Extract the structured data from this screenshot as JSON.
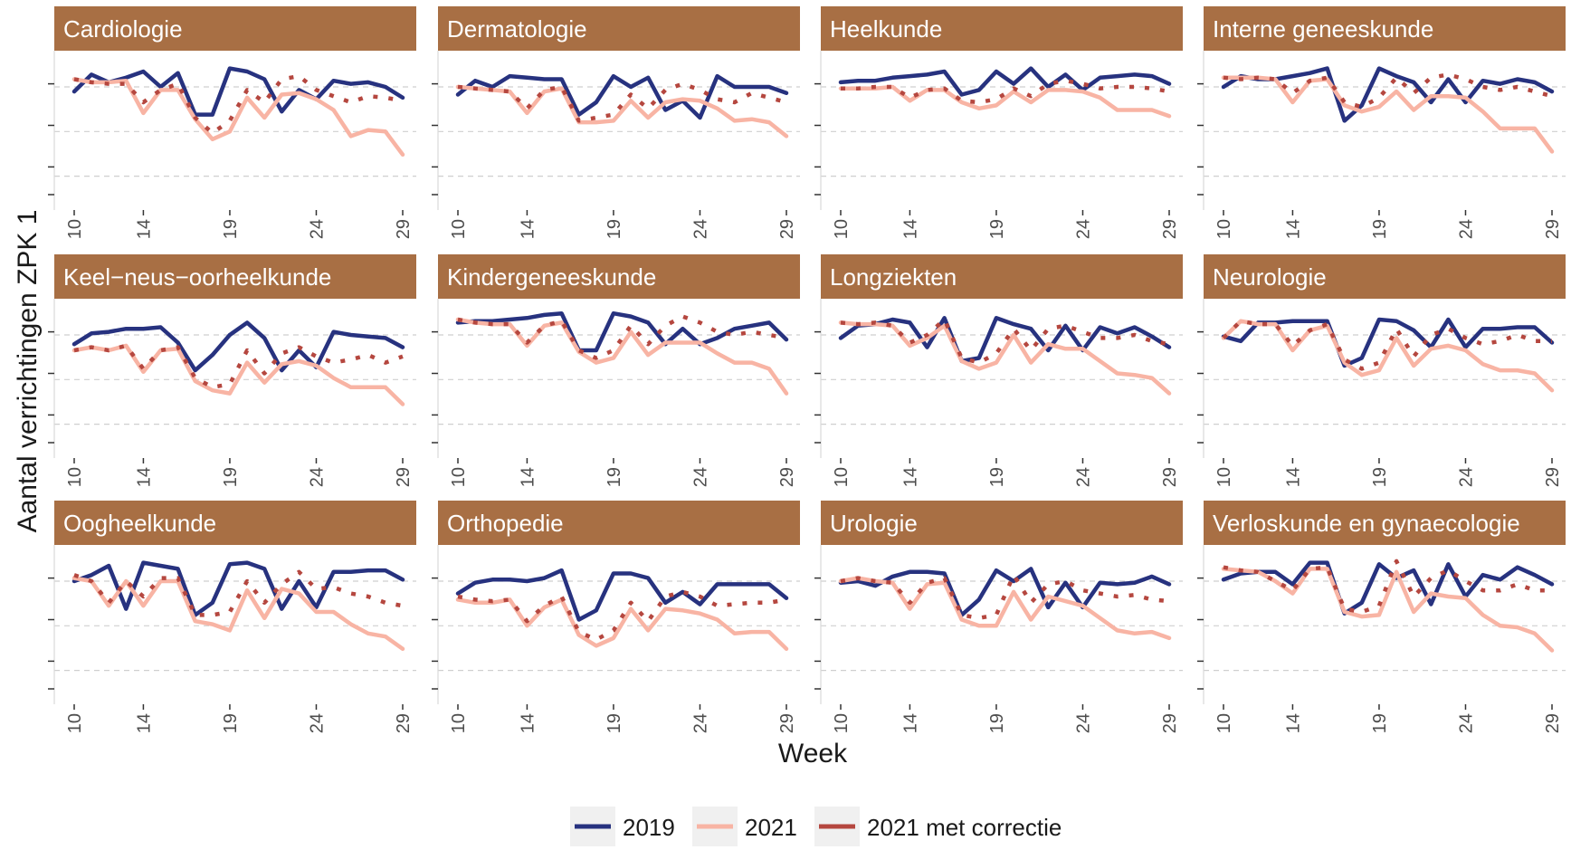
{
  "chart_data": {
    "type": "line",
    "xlabel": "Week",
    "ylabel": "Aantal verrichtingen ZPK 1",
    "x": [
      10,
      11,
      12,
      13,
      14,
      15,
      16,
      17,
      18,
      19,
      20,
      21,
      22,
      23,
      24,
      25,
      26,
      27,
      28,
      29
    ],
    "x_ticks": [
      10,
      14,
      19,
      24,
      29
    ],
    "y_tick_labels_shown": false,
    "y_unit": "index (relative, no printed tick labels)",
    "ylim": [
      0,
      1
    ],
    "grid": "dashed horizontal gridlines",
    "legend_position": "bottom",
    "strip_color": "#A86F44",
    "series_styles": [
      {
        "name": "2019",
        "color": "#27327F",
        "dash": "solid"
      },
      {
        "name": "2021",
        "color": "#F8B4A4",
        "dash": "solid"
      },
      {
        "name": "2021 met correctie",
        "color": "#B5473F",
        "dash": "dotted"
      }
    ],
    "panels": [
      {
        "title": "Cardiologie",
        "series": [
          {
            "name": "2019",
            "values": [
              0.77,
              0.88,
              0.83,
              0.86,
              0.9,
              0.8,
              0.89,
              0.62,
              0.62,
              0.92,
              0.9,
              0.85,
              0.64,
              0.78,
              0.72,
              0.84,
              0.82,
              0.83,
              0.8,
              0.73
            ]
          },
          {
            "name": "2021",
            "values": [
              0.85,
              0.83,
              0.83,
              0.84,
              0.63,
              0.78,
              0.78,
              0.59,
              0.46,
              0.51,
              0.73,
              0.6,
              0.75,
              0.76,
              0.72,
              0.65,
              0.48,
              0.52,
              0.51,
              0.36
            ]
          },
          {
            "name": "2021 met correctie",
            "values": [
              0.85,
              0.83,
              0.82,
              0.82,
              0.7,
              0.78,
              0.82,
              0.6,
              0.5,
              0.58,
              0.78,
              0.7,
              0.85,
              0.87,
              0.78,
              0.74,
              0.7,
              0.74,
              0.73,
              0.71
            ]
          }
        ]
      },
      {
        "title": "Dermatologie",
        "series": [
          {
            "name": "2019",
            "values": [
              0.75,
              0.84,
              0.8,
              0.87,
              0.86,
              0.85,
              0.85,
              0.62,
              0.7,
              0.87,
              0.8,
              0.86,
              0.65,
              0.71,
              0.6,
              0.87,
              0.8,
              0.8,
              0.8,
              0.76
            ]
          },
          {
            "name": "2021",
            "values": [
              0.8,
              0.79,
              0.78,
              0.77,
              0.63,
              0.77,
              0.79,
              0.57,
              0.57,
              0.58,
              0.71,
              0.6,
              0.7,
              0.72,
              0.71,
              0.66,
              0.58,
              0.59,
              0.57,
              0.48
            ]
          },
          {
            "name": "2021 met correctie",
            "values": [
              0.8,
              0.79,
              0.78,
              0.77,
              0.66,
              0.78,
              0.8,
              0.58,
              0.6,
              0.62,
              0.75,
              0.66,
              0.78,
              0.82,
              0.78,
              0.72,
              0.7,
              0.76,
              0.73,
              0.7
            ]
          }
        ]
      },
      {
        "title": "Heelkunde",
        "series": [
          {
            "name": "2019",
            "values": [
              0.83,
              0.84,
              0.84,
              0.86,
              0.87,
              0.88,
              0.9,
              0.75,
              0.78,
              0.9,
              0.82,
              0.92,
              0.8,
              0.88,
              0.78,
              0.86,
              0.87,
              0.88,
              0.87,
              0.82
            ]
          },
          {
            "name": "2021",
            "values": [
              0.79,
              0.79,
              0.79,
              0.8,
              0.71,
              0.78,
              0.78,
              0.7,
              0.66,
              0.68,
              0.77,
              0.7,
              0.78,
              0.78,
              0.77,
              0.73,
              0.65,
              0.65,
              0.65,
              0.61
            ]
          },
          {
            "name": "2021 met correctie",
            "values": [
              0.79,
              0.79,
              0.8,
              0.8,
              0.73,
              0.78,
              0.79,
              0.71,
              0.7,
              0.72,
              0.79,
              0.74,
              0.82,
              0.84,
              0.82,
              0.79,
              0.8,
              0.8,
              0.79,
              0.77
            ]
          }
        ]
      },
      {
        "title": "Interne geneeskunde",
        "series": [
          {
            "name": "2019",
            "values": [
              0.8,
              0.87,
              0.85,
              0.85,
              0.87,
              0.89,
              0.92,
              0.58,
              0.68,
              0.92,
              0.87,
              0.83,
              0.7,
              0.85,
              0.7,
              0.84,
              0.82,
              0.85,
              0.83,
              0.77
            ]
          },
          {
            "name": "2021",
            "values": [
              0.86,
              0.86,
              0.86,
              0.85,
              0.7,
              0.84,
              0.85,
              0.68,
              0.64,
              0.67,
              0.77,
              0.65,
              0.74,
              0.74,
              0.73,
              0.64,
              0.53,
              0.53,
              0.53,
              0.38
            ]
          },
          {
            "name": "2021 met correctie",
            "values": [
              0.86,
              0.85,
              0.86,
              0.85,
              0.76,
              0.84,
              0.86,
              0.7,
              0.67,
              0.73,
              0.86,
              0.76,
              0.86,
              0.88,
              0.85,
              0.8,
              0.78,
              0.8,
              0.77,
              0.74
            ]
          }
        ]
      },
      {
        "title": "Keel−neus−oorheelkunde",
        "series": [
          {
            "name": "2019",
            "values": [
              0.74,
              0.81,
              0.82,
              0.84,
              0.84,
              0.85,
              0.75,
              0.57,
              0.67,
              0.8,
              0.88,
              0.78,
              0.57,
              0.7,
              0.59,
              0.82,
              0.8,
              0.79,
              0.78,
              0.72
            ]
          },
          {
            "name": "2021",
            "values": [
              0.7,
              0.72,
              0.7,
              0.73,
              0.56,
              0.7,
              0.71,
              0.5,
              0.44,
              0.42,
              0.62,
              0.49,
              0.61,
              0.63,
              0.6,
              0.52,
              0.46,
              0.46,
              0.46,
              0.35
            ]
          },
          {
            "name": "2021 met correctie",
            "values": [
              0.7,
              0.72,
              0.7,
              0.73,
              0.58,
              0.7,
              0.72,
              0.52,
              0.46,
              0.48,
              0.7,
              0.55,
              0.68,
              0.72,
              0.66,
              0.62,
              0.64,
              0.67,
              0.62,
              0.66
            ]
          }
        ]
      },
      {
        "title": "Kindergeneeskunde",
        "series": [
          {
            "name": "2019",
            "values": [
              0.88,
              0.89,
              0.89,
              0.9,
              0.91,
              0.93,
              0.94,
              0.7,
              0.7,
              0.94,
              0.92,
              0.88,
              0.74,
              0.84,
              0.74,
              0.78,
              0.84,
              0.86,
              0.88,
              0.77
            ]
          },
          {
            "name": "2021",
            "values": [
              0.9,
              0.88,
              0.87,
              0.87,
              0.73,
              0.86,
              0.88,
              0.69,
              0.62,
              0.65,
              0.82,
              0.67,
              0.75,
              0.75,
              0.75,
              0.68,
              0.62,
              0.62,
              0.58,
              0.42
            ]
          },
          {
            "name": "2021 met correctie",
            "values": [
              0.9,
              0.88,
              0.87,
              0.87,
              0.75,
              0.86,
              0.89,
              0.7,
              0.65,
              0.7,
              0.86,
              0.74,
              0.86,
              0.92,
              0.88,
              0.82,
              0.8,
              0.82,
              0.8,
              0.78
            ]
          }
        ]
      },
      {
        "title": "Longziekten",
        "series": [
          {
            "name": "2019",
            "values": [
              0.78,
              0.86,
              0.87,
              0.9,
              0.88,
              0.72,
              0.91,
              0.63,
              0.65,
              0.91,
              0.87,
              0.84,
              0.7,
              0.86,
              0.7,
              0.85,
              0.81,
              0.85,
              0.79,
              0.72
            ]
          },
          {
            "name": "2021",
            "values": [
              0.88,
              0.87,
              0.87,
              0.86,
              0.73,
              0.78,
              0.86,
              0.63,
              0.58,
              0.62,
              0.8,
              0.62,
              0.74,
              0.71,
              0.71,
              0.63,
              0.55,
              0.54,
              0.52,
              0.42
            ]
          },
          {
            "name": "2021 met correctie",
            "values": [
              0.88,
              0.87,
              0.88,
              0.86,
              0.75,
              0.8,
              0.9,
              0.65,
              0.62,
              0.68,
              0.84,
              0.7,
              0.84,
              0.86,
              0.82,
              0.78,
              0.78,
              0.8,
              0.76,
              0.74
            ]
          }
        ]
      },
      {
        "title": "Neurologie",
        "series": [
          {
            "name": "2019",
            "values": [
              0.79,
              0.76,
              0.88,
              0.88,
              0.89,
              0.89,
              0.89,
              0.6,
              0.65,
              0.9,
              0.89,
              0.83,
              0.72,
              0.9,
              0.72,
              0.84,
              0.84,
              0.85,
              0.85,
              0.75
            ]
          },
          {
            "name": "2021",
            "values": [
              0.78,
              0.89,
              0.87,
              0.87,
              0.7,
              0.83,
              0.86,
              0.62,
              0.54,
              0.57,
              0.78,
              0.6,
              0.71,
              0.73,
              0.7,
              0.61,
              0.57,
              0.57,
              0.55,
              0.44
            ]
          },
          {
            "name": "2021 met correctie",
            "values": [
              0.78,
              0.89,
              0.87,
              0.87,
              0.73,
              0.83,
              0.87,
              0.64,
              0.58,
              0.62,
              0.84,
              0.66,
              0.8,
              0.84,
              0.78,
              0.74,
              0.76,
              0.8,
              0.76,
              0.76
            ]
          }
        ]
      },
      {
        "title": "Oogheelkunde",
        "series": [
          {
            "name": "2019",
            "values": [
              0.8,
              0.84,
              0.9,
              0.62,
              0.92,
              0.9,
              0.88,
              0.58,
              0.66,
              0.91,
              0.92,
              0.88,
              0.62,
              0.8,
              0.63,
              0.86,
              0.86,
              0.87,
              0.87,
              0.81
            ]
          },
          {
            "name": "2021",
            "values": [
              0.82,
              0.8,
              0.64,
              0.8,
              0.64,
              0.8,
              0.8,
              0.54,
              0.52,
              0.48,
              0.74,
              0.56,
              0.75,
              0.72,
              0.6,
              0.6,
              0.52,
              0.46,
              0.44,
              0.36
            ]
          },
          {
            "name": "2021 met correctie",
            "values": [
              0.84,
              0.8,
              0.66,
              0.8,
              0.7,
              0.82,
              0.82,
              0.58,
              0.58,
              0.6,
              0.8,
              0.66,
              0.78,
              0.86,
              0.75,
              0.76,
              0.72,
              0.7,
              0.66,
              0.64
            ]
          }
        ]
      },
      {
        "title": "Orthopedie",
        "series": [
          {
            "name": "2019",
            "values": [
              0.72,
              0.79,
              0.81,
              0.81,
              0.8,
              0.82,
              0.87,
              0.55,
              0.61,
              0.85,
              0.85,
              0.82,
              0.66,
              0.73,
              0.65,
              0.78,
              0.78,
              0.78,
              0.78,
              0.69
            ]
          },
          {
            "name": "2021",
            "values": [
              0.68,
              0.66,
              0.66,
              0.68,
              0.51,
              0.63,
              0.68,
              0.45,
              0.38,
              0.43,
              0.62,
              0.48,
              0.62,
              0.61,
              0.59,
              0.55,
              0.46,
              0.47,
              0.47,
              0.36
            ]
          },
          {
            "name": "2021 met correctie",
            "values": [
              0.7,
              0.68,
              0.67,
              0.68,
              0.54,
              0.64,
              0.7,
              0.47,
              0.42,
              0.48,
              0.66,
              0.54,
              0.7,
              0.73,
              0.7,
              0.64,
              0.65,
              0.66,
              0.66,
              0.68
            ]
          }
        ]
      },
      {
        "title": "Urologie",
        "series": [
          {
            "name": "2019",
            "values": [
              0.79,
              0.8,
              0.77,
              0.83,
              0.86,
              0.86,
              0.85,
              0.58,
              0.68,
              0.87,
              0.8,
              0.88,
              0.63,
              0.79,
              0.63,
              0.79,
              0.78,
              0.79,
              0.83,
              0.78
            ]
          },
          {
            "name": "2021",
            "values": [
              0.8,
              0.82,
              0.8,
              0.79,
              0.62,
              0.78,
              0.79,
              0.55,
              0.51,
              0.51,
              0.73,
              0.55,
              0.7,
              0.67,
              0.64,
              0.56,
              0.48,
              0.46,
              0.47,
              0.43
            ]
          },
          {
            "name": "2021 met correctie",
            "values": [
              0.8,
              0.82,
              0.8,
              0.79,
              0.66,
              0.79,
              0.82,
              0.58,
              0.56,
              0.58,
              0.84,
              0.66,
              0.78,
              0.8,
              0.74,
              0.72,
              0.7,
              0.71,
              0.68,
              0.67
            ]
          }
        ]
      },
      {
        "title": "Verloskunde en gynaecologie",
        "series": [
          {
            "name": "2019",
            "values": [
              0.81,
              0.85,
              0.86,
              0.86,
              0.78,
              0.92,
              0.92,
              0.59,
              0.66,
              0.91,
              0.82,
              0.87,
              0.65,
              0.91,
              0.7,
              0.84,
              0.81,
              0.89,
              0.84,
              0.78
            ]
          },
          {
            "name": "2021",
            "values": [
              0.88,
              0.87,
              0.86,
              0.8,
              0.72,
              0.88,
              0.88,
              0.6,
              0.57,
              0.58,
              0.86,
              0.6,
              0.72,
              0.7,
              0.69,
              0.58,
              0.51,
              0.5,
              0.46,
              0.35
            ]
          },
          {
            "name": "2021 met correctie",
            "values": [
              0.89,
              0.87,
              0.86,
              0.8,
              0.74,
              0.88,
              0.89,
              0.62,
              0.6,
              0.64,
              0.93,
              0.7,
              0.82,
              0.87,
              0.8,
              0.74,
              0.74,
              0.78,
              0.74,
              0.74
            ]
          }
        ]
      }
    ]
  }
}
